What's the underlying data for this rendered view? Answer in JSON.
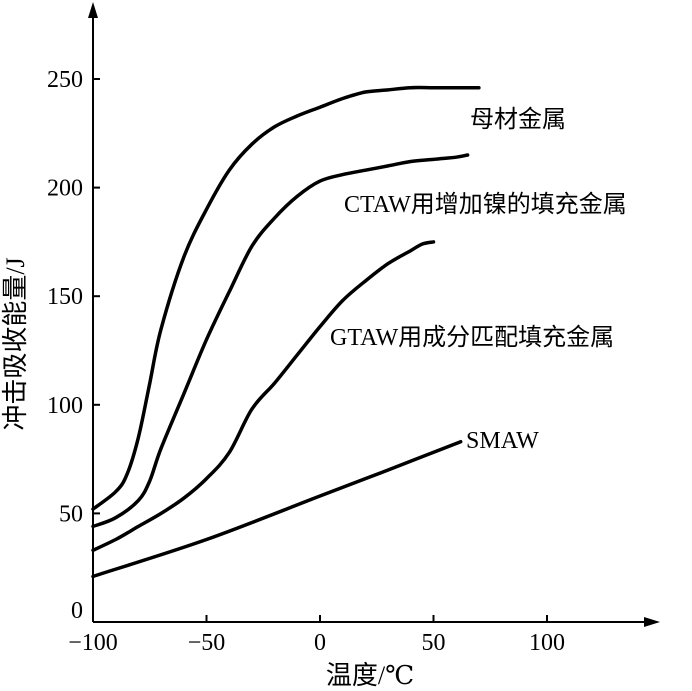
{
  "chart_data": {
    "type": "line",
    "title": "",
    "xlabel": "温度/℃",
    "ylabel": "冲击吸收能量/J",
    "xlim": [
      -100,
      150
    ],
    "ylim": [
      0,
      280
    ],
    "x_ticks": [
      -100,
      -50,
      0,
      50,
      100
    ],
    "y_ticks": [
      0,
      50,
      100,
      150,
      200,
      250
    ],
    "x_tick_labels": [
      "−100",
      "−50",
      "0",
      "50",
      "100"
    ],
    "y_tick_labels": [
      "0",
      "50",
      "100",
      "150",
      "200",
      "250"
    ],
    "grid": false,
    "legend": "inline labels",
    "series": [
      {
        "name": "母材金属",
        "points": [
          [
            -100,
            52
          ],
          [
            -90,
            60
          ],
          [
            -85,
            68
          ],
          [
            -80,
            85
          ],
          [
            -75,
            110
          ],
          [
            -70,
            135
          ],
          [
            -60,
            168
          ],
          [
            -50,
            190
          ],
          [
            -40,
            208
          ],
          [
            -30,
            220
          ],
          [
            -20,
            228
          ],
          [
            -10,
            233
          ],
          [
            0,
            237
          ],
          [
            10,
            241
          ],
          [
            20,
            244
          ],
          [
            30,
            245
          ],
          [
            40,
            246
          ],
          [
            50,
            246
          ],
          [
            60,
            246
          ],
          [
            70,
            246
          ]
        ]
      },
      {
        "name": "CTAW用增加镍的填充金属",
        "points": [
          [
            -100,
            44
          ],
          [
            -90,
            48
          ],
          [
            -80,
            56
          ],
          [
            -75,
            65
          ],
          [
            -70,
            80
          ],
          [
            -60,
            105
          ],
          [
            -50,
            130
          ],
          [
            -40,
            152
          ],
          [
            -30,
            173
          ],
          [
            -20,
            186
          ],
          [
            -10,
            196
          ],
          [
            0,
            203
          ],
          [
            10,
            206
          ],
          [
            20,
            208
          ],
          [
            30,
            210
          ],
          [
            40,
            212
          ],
          [
            50,
            213
          ],
          [
            60,
            214
          ],
          [
            65,
            215
          ]
        ]
      },
      {
        "name": "GTAW用成分匹配填充金属",
        "points": [
          [
            -100,
            33
          ],
          [
            -90,
            38
          ],
          [
            -80,
            44
          ],
          [
            -70,
            50
          ],
          [
            -60,
            57
          ],
          [
            -50,
            66
          ],
          [
            -40,
            78
          ],
          [
            -30,
            98
          ],
          [
            -20,
            110
          ],
          [
            -10,
            123
          ],
          [
            0,
            136
          ],
          [
            10,
            148
          ],
          [
            20,
            157
          ],
          [
            30,
            165
          ],
          [
            40,
            171
          ],
          [
            45,
            174
          ],
          [
            50,
            175
          ]
        ]
      },
      {
        "name": "SMAW",
        "points": [
          [
            -100,
            21
          ],
          [
            -50,
            38
          ],
          [
            0,
            58
          ],
          [
            30,
            70
          ],
          [
            62,
            83
          ]
        ]
      }
    ]
  }
}
